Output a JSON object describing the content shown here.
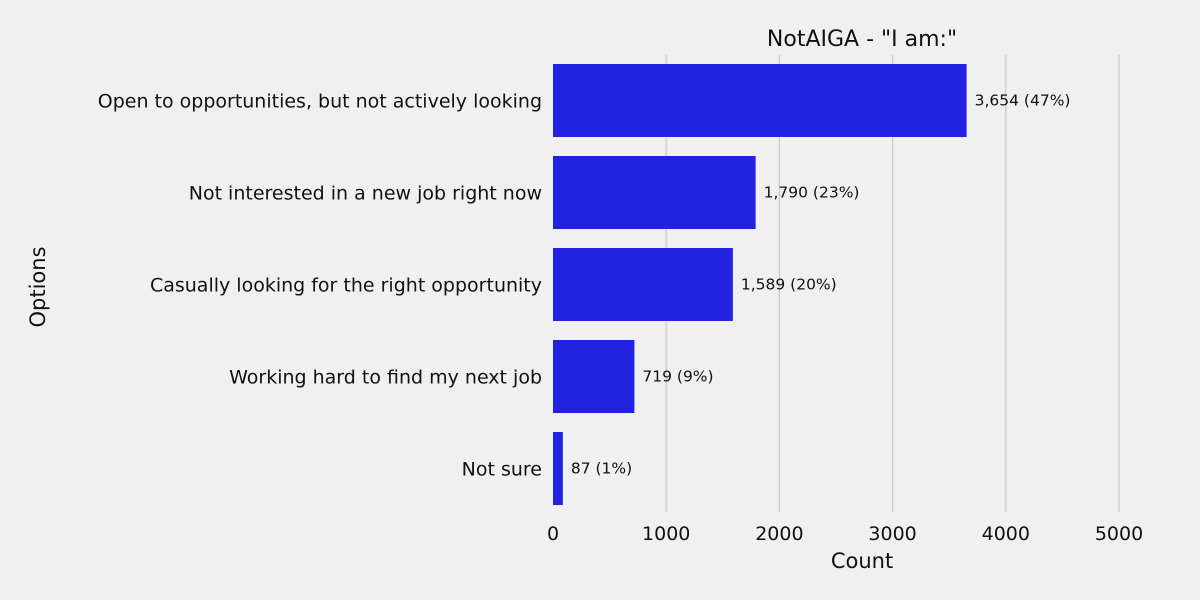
{
  "chart_data": {
    "type": "bar",
    "orientation": "horizontal",
    "title": "NotAIGA - \"I am:\"",
    "xlabel": "Count",
    "ylabel": "Options",
    "xlim": [
      0,
      5200
    ],
    "xticks": [
      0,
      1000,
      2000,
      3000,
      4000,
      5000
    ],
    "grid": "vertical",
    "colors": {
      "bar": "#2222e0",
      "background": "#f0f0f0",
      "grid": "#cbcbcb"
    },
    "categories": [
      "Open to opportunities, but not actively looking",
      "Not interested in a new job right now",
      "Casually looking for the right opportunity",
      "Working hard to find my next job",
      "Not sure"
    ],
    "values": [
      3654,
      1790,
      1589,
      719,
      87
    ],
    "data_labels": [
      "3,654 (47%)",
      "1,790 (23%)",
      "1,589 (20%)",
      "719 (9%)",
      "87 (1%)"
    ]
  }
}
